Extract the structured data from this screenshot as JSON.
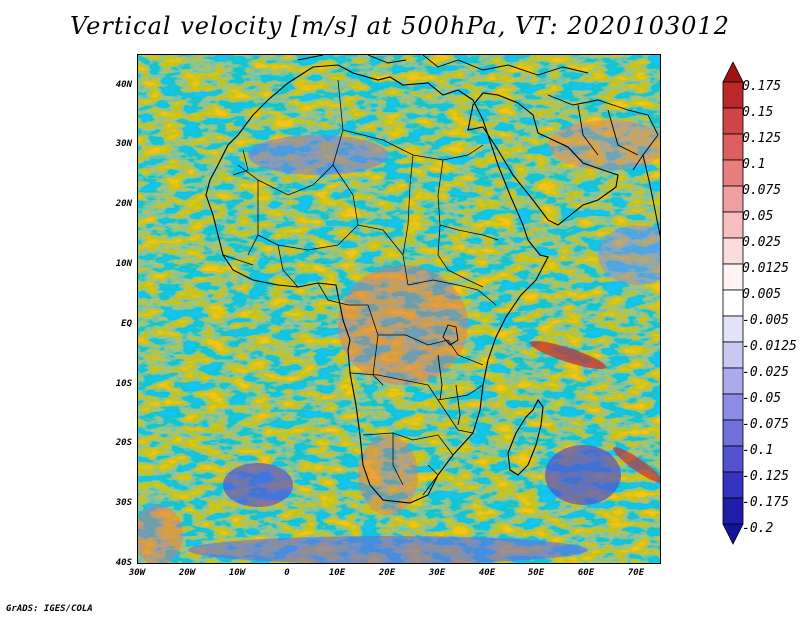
{
  "title": "Vertical velocity [m/s] at 500hPa, VT: 2020103012",
  "credit": "GrADS: IGES/COLA",
  "map": {
    "lat_labels": [
      "40N",
      "30N",
      "20N",
      "10N",
      "EQ",
      "10S",
      "20S",
      "30S",
      "40S"
    ],
    "lon_labels": [
      "30W",
      "20W",
      "10W",
      "0",
      "10E",
      "20E",
      "30E",
      "40E",
      "50E",
      "60E",
      "70E"
    ]
  },
  "colorbar": {
    "labels": [
      "0.175",
      "0.15",
      "0.125",
      "0.1",
      "0.075",
      "0.05",
      "0.025",
      "0.0125",
      "0.005",
      "-0.005",
      "-0.0125",
      "-0.025",
      "-0.05",
      "-0.075",
      "-0.1",
      "-0.125",
      "-0.175",
      "-0.2"
    ],
    "colors": [
      "#a01414",
      "#bc2828",
      "#cf4444",
      "#dd6060",
      "#e77f7f",
      "#ef9f9f",
      "#f5bfbf",
      "#fadcdc",
      "#fff2f2",
      "#ffffff",
      "#e2e2f8",
      "#c8c8f2",
      "#aaaaec",
      "#8c8ce6",
      "#7070dc",
      "#5252d0",
      "#3434c0",
      "#1e1ea8",
      "#14149a"
    ]
  }
}
